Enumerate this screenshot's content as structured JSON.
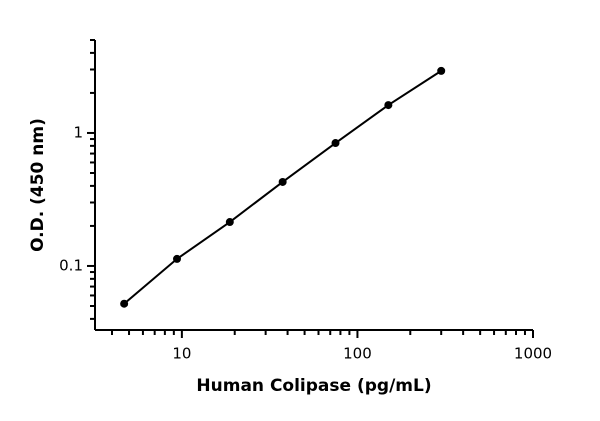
{
  "chart_data": {
    "type": "line",
    "x_label": "Human Colipase (pg/mL)",
    "y_label": "O.D. (450 nm)",
    "x": [
      4.69,
      9.38,
      18.75,
      37.5,
      75,
      150,
      300
    ],
    "series": [
      {
        "color": "#000000",
        "values": [
          0.052,
          0.113,
          0.214,
          0.428,
          0.84,
          1.62,
          2.93
        ]
      }
    ],
    "markers": true,
    "xscale": "log",
    "yscale": "log",
    "xlim": [
      3.2,
      1000
    ],
    "ylim": [
      0.033,
      5
    ],
    "xticks": [
      10,
      100,
      1000
    ],
    "yticks": [
      0.1,
      1
    ],
    "xminorticks": [
      4,
      5,
      6,
      7,
      8,
      9,
      20,
      30,
      40,
      50,
      60,
      70,
      80,
      90,
      200,
      300,
      400,
      500,
      600,
      700,
      800,
      900
    ],
    "yminorticks": [
      0.04,
      0.05,
      0.06,
      0.07,
      0.08,
      0.09,
      0.2,
      0.3,
      0.4,
      0.5,
      0.6,
      0.7,
      0.8,
      0.9,
      2,
      3,
      4,
      5
    ]
  }
}
